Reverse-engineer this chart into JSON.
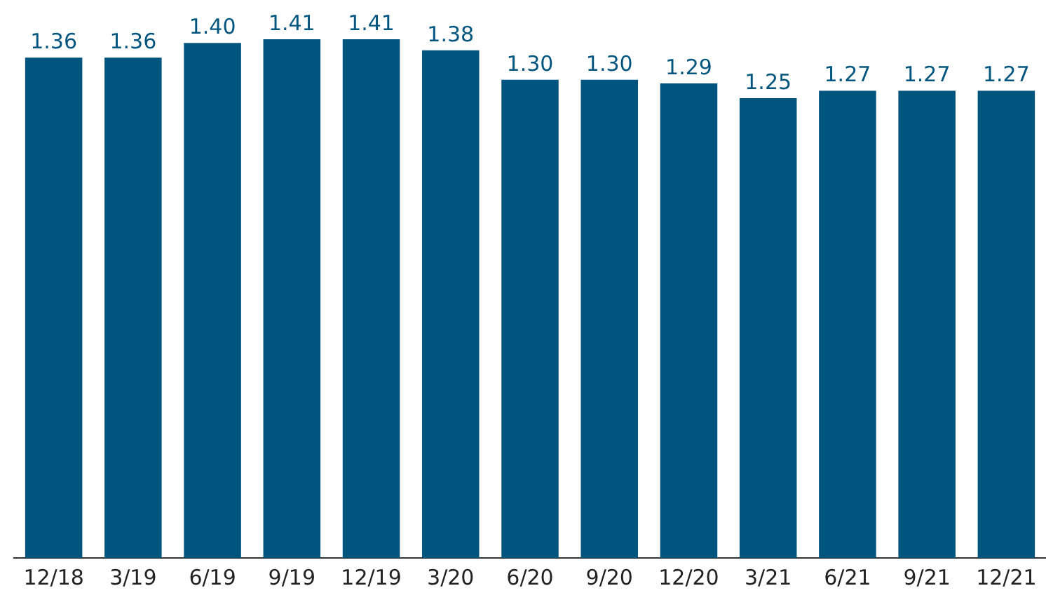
{
  "chart_data": {
    "type": "bar",
    "categories": [
      "12/18",
      "3/19",
      "6/19",
      "9/19",
      "12/19",
      "3/20",
      "6/20",
      "9/20",
      "12/20",
      "3/21",
      "6/21",
      "9/21",
      "12/21"
    ],
    "values": [
      1.36,
      1.36,
      1.4,
      1.41,
      1.41,
      1.38,
      1.3,
      1.3,
      1.29,
      1.25,
      1.27,
      1.27,
      1.27
    ],
    "value_labels": [
      "1.36",
      "1.36",
      "1.40",
      "1.41",
      "1.41",
      "1.38",
      "1.30",
      "1.30",
      "1.29",
      "1.25",
      "1.27",
      "1.27",
      "1.27"
    ],
    "color": "#00557f",
    "ylim": [
      0,
      1.41
    ],
    "grid": false,
    "legend": false,
    "tick_labels": "x"
  }
}
